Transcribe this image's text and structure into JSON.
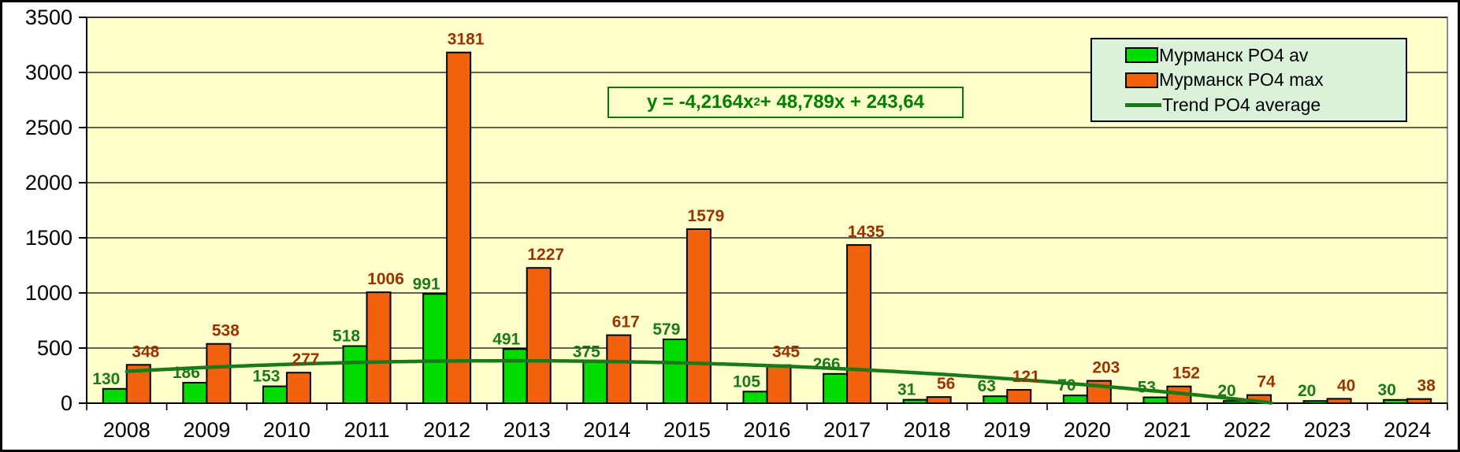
{
  "colors": {
    "plot_bg": "#FFFFCC",
    "outer_bg": "#FFFFFF",
    "gridline": "#000000",
    "plot_border_gray": "#909090",
    "axis_black": "#000000",
    "legend_bg": "#D9F2D9",
    "equation_green": "#008000",
    "av_bar": "#00DB00",
    "max_bar": "#F2620D",
    "av_label": "#1A7A1A",
    "max_label": "#993300",
    "trend_line": "#1A7A1A"
  },
  "chart_data": {
    "type": "bar",
    "title": "",
    "categories": [
      "2008",
      "2009",
      "2010",
      "2011",
      "2012",
      "2013",
      "2014",
      "2015",
      "2016",
      "2017",
      "2018",
      "2019",
      "2020",
      "2021",
      "2022",
      "2023",
      "2024"
    ],
    "series": [
      {
        "name": "Мурманск PO4 av",
        "color": "#00DB00",
        "label_color": "#1A7A1A",
        "values": [
          130,
          186,
          153,
          518,
          991,
          491,
          375,
          579,
          105,
          266,
          31,
          63,
          70,
          53,
          20,
          20,
          30
        ]
      },
      {
        "name": "Мурманск PO4 max",
        "color": "#F2620D",
        "label_color": "#993300",
        "values": [
          348,
          538,
          277,
          1006,
          3181,
          1227,
          617,
          1579,
          345,
          1435,
          56,
          121,
          203,
          152,
          74,
          40,
          38
        ]
      }
    ],
    "trend": {
      "name": "Trend PO4 average",
      "color": "#1A7A1A",
      "coeffs": {
        "a": -4.2164,
        "b": 48.789,
        "c": 243.64
      },
      "equation": {
        "pre": "y = -4,2164x",
        "sup": "2",
        "post": " + 48,789x + 243,64"
      }
    },
    "ylim": [
      0,
      3500
    ],
    "ytick_step": 500,
    "yticks": [
      0,
      500,
      1000,
      1500,
      2000,
      2500,
      3000,
      3500
    ],
    "grid": true,
    "legend_position": "top-right",
    "data_labels": true
  }
}
